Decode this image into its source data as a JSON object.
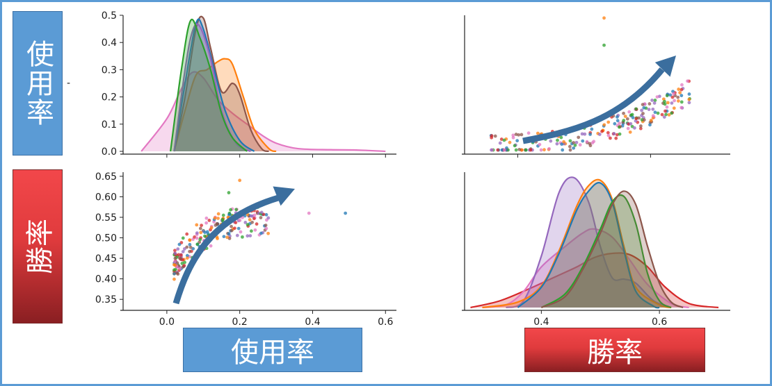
{
  "labels": {
    "row_top": "使用率",
    "row_bottom": "勝率",
    "col_left": "使用率",
    "col_right": "勝率",
    "stray_mark": "-"
  },
  "colors": {
    "frame": "#5b9bd5",
    "usage_box": "#5b9bd5",
    "winrate_box": "#e8413f",
    "arrow": "#3b6e9e",
    "series": [
      "#1f77b4",
      "#ff7f0e",
      "#2ca02c",
      "#d62728",
      "#9467bd",
      "#8c564b",
      "#e377c2"
    ]
  },
  "chart_data": [
    {
      "type": "area",
      "panel": "usage-density",
      "xlim": [
        -0.12,
        0.63
      ],
      "ylim": [
        0,
        0.5
      ],
      "yticks": [
        "0.0",
        "0.1",
        "0.2",
        "0.3",
        "0.4",
        "0.5"
      ],
      "ytick_values": [
        0.0,
        0.1,
        0.2,
        0.3,
        0.4,
        0.5
      ],
      "xtick_values": [
        0.0,
        0.2,
        0.4,
        0.6
      ],
      "series": [
        {
          "color": "#e377c2",
          "curve": [
            [
              -0.07,
              0.0
            ],
            [
              0.0,
              0.12
            ],
            [
              0.04,
              0.23
            ],
            [
              0.07,
              0.29
            ],
            [
              0.1,
              0.27
            ],
            [
              0.14,
              0.19
            ],
            [
              0.18,
              0.14
            ],
            [
              0.22,
              0.1
            ],
            [
              0.26,
              0.06
            ],
            [
              0.3,
              0.03
            ],
            [
              0.36,
              0.01
            ],
            [
              0.45,
              0.006
            ],
            [
              0.52,
              0.005
            ],
            [
              0.6,
              0.0
            ]
          ]
        },
        {
          "color": "#ff7f0e",
          "curve": [
            [
              0.02,
              0.0
            ],
            [
              0.05,
              0.15
            ],
            [
              0.08,
              0.28
            ],
            [
              0.11,
              0.3
            ],
            [
              0.14,
              0.33
            ],
            [
              0.16,
              0.34
            ],
            [
              0.18,
              0.32
            ],
            [
              0.21,
              0.2
            ],
            [
              0.24,
              0.08
            ],
            [
              0.28,
              0.01
            ],
            [
              0.3,
              0.0
            ]
          ]
        },
        {
          "color": "#8c564b",
          "curve": [
            [
              0.02,
              0.0
            ],
            [
              0.05,
              0.2
            ],
            [
              0.08,
              0.45
            ],
            [
              0.1,
              0.49
            ],
            [
              0.12,
              0.38
            ],
            [
              0.15,
              0.22
            ],
            [
              0.18,
              0.25
            ],
            [
              0.2,
              0.21
            ],
            [
              0.23,
              0.08
            ],
            [
              0.26,
              0.01
            ],
            [
              0.28,
              0.0
            ]
          ]
        },
        {
          "color": "#1f77b4",
          "curve": [
            [
              0.02,
              0.0
            ],
            [
              0.05,
              0.25
            ],
            [
              0.08,
              0.47
            ],
            [
              0.1,
              0.45
            ],
            [
              0.13,
              0.3
            ],
            [
              0.16,
              0.15
            ],
            [
              0.2,
              0.04
            ],
            [
              0.24,
              0.0
            ]
          ]
        },
        {
          "color": "#9467bd",
          "curve": [
            [
              0.02,
              0.0
            ],
            [
              0.05,
              0.3
            ],
            [
              0.07,
              0.44
            ],
            [
              0.09,
              0.46
            ],
            [
              0.12,
              0.34
            ],
            [
              0.15,
              0.15
            ],
            [
              0.19,
              0.03
            ],
            [
              0.23,
              0.0
            ]
          ]
        },
        {
          "color": "#2ca02c",
          "curve": [
            [
              0.01,
              0.0
            ],
            [
              0.04,
              0.3
            ],
            [
              0.065,
              0.48
            ],
            [
              0.09,
              0.42
            ],
            [
              0.12,
              0.3
            ],
            [
              0.15,
              0.14
            ],
            [
              0.18,
              0.05
            ],
            [
              0.22,
              0.0
            ]
          ]
        }
      ]
    },
    {
      "type": "scatter",
      "panel": "usage-vs-winrate",
      "xlim": [
        0.32,
        0.72
      ],
      "ylim": [
        0,
        0.5
      ],
      "xtick_values": [
        0.4,
        0.6
      ],
      "trend": "increasing-curve"
    },
    {
      "type": "scatter",
      "panel": "winrate-vs-usage",
      "xlim": [
        -0.12,
        0.63
      ],
      "ylim": [
        0.33,
        0.66
      ],
      "xticks": [
        "0.0",
        "0.2",
        "0.4",
        "0.6"
      ],
      "xtick_values": [
        0.0,
        0.2,
        0.4,
        0.6
      ],
      "yticks": [
        "0.35",
        "0.40",
        "0.45",
        "0.50",
        "0.55",
        "0.60",
        "0.65"
      ],
      "ytick_values": [
        0.35,
        0.4,
        0.45,
        0.5,
        0.55,
        0.6,
        0.65
      ],
      "trend": "increasing-curve"
    },
    {
      "type": "area",
      "panel": "winrate-density",
      "xlim": [
        0.27,
        0.72
      ],
      "ylim": [
        0,
        1.0
      ],
      "xticks": [
        "0.4",
        "0.6"
      ],
      "xtick_values": [
        0.4,
        0.6
      ],
      "series": [
        {
          "color": "#d62728",
          "curve": [
            [
              0.28,
              0.0
            ],
            [
              0.33,
              0.05
            ],
            [
              0.38,
              0.14
            ],
            [
              0.42,
              0.22
            ],
            [
              0.46,
              0.3
            ],
            [
              0.49,
              0.37
            ],
            [
              0.52,
              0.4
            ],
            [
              0.55,
              0.39
            ],
            [
              0.58,
              0.3
            ],
            [
              0.61,
              0.15
            ],
            [
              0.65,
              0.03
            ],
            [
              0.7,
              0.0
            ]
          ]
        },
        {
          "color": "#e377c2",
          "curve": [
            [
              0.3,
              0.0
            ],
            [
              0.34,
              0.02
            ],
            [
              0.37,
              0.12
            ],
            [
              0.4,
              0.3
            ],
            [
              0.44,
              0.45
            ],
            [
              0.47,
              0.55
            ],
            [
              0.49,
              0.58
            ],
            [
              0.52,
              0.52
            ],
            [
              0.55,
              0.35
            ],
            [
              0.58,
              0.17
            ],
            [
              0.62,
              0.03
            ],
            [
              0.65,
              0.0
            ]
          ]
        },
        {
          "color": "#9467bd",
          "curve": [
            [
              0.34,
              0.0
            ],
            [
              0.37,
              0.05
            ],
            [
              0.4,
              0.38
            ],
            [
              0.43,
              0.85
            ],
            [
              0.455,
              0.96
            ],
            [
              0.48,
              0.78
            ],
            [
              0.5,
              0.45
            ],
            [
              0.52,
              0.22
            ],
            [
              0.54,
              0.21
            ],
            [
              0.56,
              0.18
            ],
            [
              0.59,
              0.05
            ],
            [
              0.62,
              0.0
            ]
          ]
        },
        {
          "color": "#ff7f0e",
          "curve": [
            [
              0.3,
              0.0
            ],
            [
              0.36,
              0.04
            ],
            [
              0.4,
              0.16
            ],
            [
              0.43,
              0.42
            ],
            [
              0.46,
              0.75
            ],
            [
              0.48,
              0.9
            ],
            [
              0.5,
              0.94
            ],
            [
              0.52,
              0.8
            ],
            [
              0.54,
              0.45
            ],
            [
              0.56,
              0.15
            ],
            [
              0.6,
              0.02
            ],
            [
              0.62,
              0.0
            ]
          ]
        },
        {
          "color": "#1f77b4",
          "curve": [
            [
              0.36,
              0.0
            ],
            [
              0.4,
              0.15
            ],
            [
              0.43,
              0.4
            ],
            [
              0.46,
              0.72
            ],
            [
              0.48,
              0.86
            ],
            [
              0.5,
              0.92
            ],
            [
              0.52,
              0.78
            ],
            [
              0.54,
              0.42
            ],
            [
              0.56,
              0.12
            ],
            [
              0.59,
              0.01
            ],
            [
              0.6,
              0.0
            ]
          ]
        },
        {
          "color": "#2ca02c",
          "curve": [
            [
              0.4,
              0.0
            ],
            [
              0.44,
              0.1
            ],
            [
              0.47,
              0.3
            ],
            [
              0.5,
              0.58
            ],
            [
              0.52,
              0.78
            ],
            [
              0.54,
              0.82
            ],
            [
              0.56,
              0.62
            ],
            [
              0.58,
              0.25
            ],
            [
              0.6,
              0.05
            ],
            [
              0.62,
              0.0
            ]
          ]
        },
        {
          "color": "#8c564b",
          "curve": [
            [
              0.4,
              0.0
            ],
            [
              0.44,
              0.08
            ],
            [
              0.47,
              0.28
            ],
            [
              0.5,
              0.55
            ],
            [
              0.52,
              0.76
            ],
            [
              0.54,
              0.86
            ],
            [
              0.56,
              0.76
            ],
            [
              0.58,
              0.45
            ],
            [
              0.6,
              0.18
            ],
            [
              0.62,
              0.04
            ],
            [
              0.64,
              0.0
            ]
          ]
        }
      ]
    }
  ]
}
